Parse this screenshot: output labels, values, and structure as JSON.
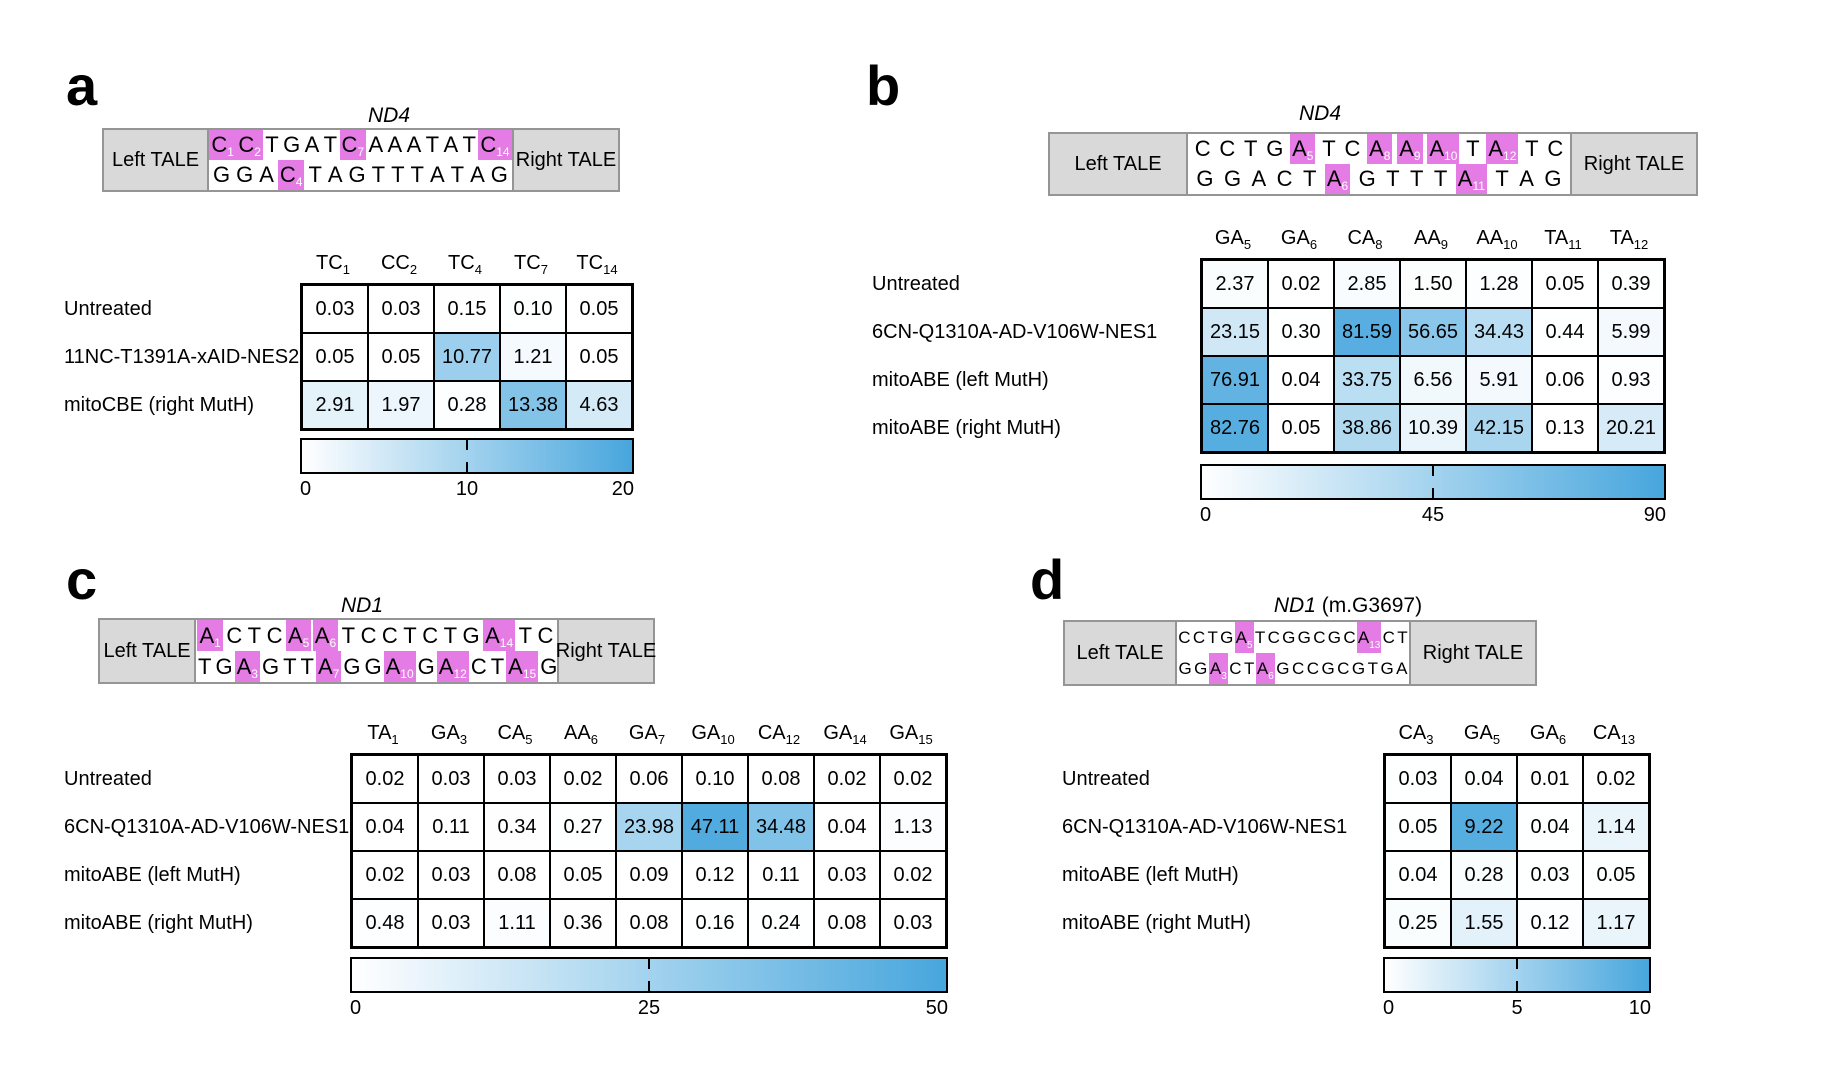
{
  "figure": {
    "colors": {
      "heat_max": "#47a6dd",
      "highlight": "#e57ce5",
      "tale_fill": "#d9d9d9",
      "tale_border": "#959595"
    },
    "panels": [
      {
        "id": "a",
        "letter": "a",
        "gene_italic": "ND4",
        "gene_suffix": "",
        "left_tale": "Left TALE",
        "right_tale": "Right TALE",
        "top_strand": [
          {
            "base": "C",
            "sub": "1",
            "hl": true
          },
          {
            "base": "C",
            "sub": "2",
            "hl": true
          },
          {
            "base": "T"
          },
          {
            "base": "G"
          },
          {
            "base": "A"
          },
          {
            "base": "T"
          },
          {
            "base": "C",
            "sub": "7",
            "hl": true
          },
          {
            "base": "A"
          },
          {
            "base": "A"
          },
          {
            "base": "A"
          },
          {
            "base": "T"
          },
          {
            "base": "A"
          },
          {
            "base": "T"
          },
          {
            "base": "C",
            "sub": "14",
            "hl": true
          }
        ],
        "bottom_strand": [
          {
            "base": "G"
          },
          {
            "base": "G"
          },
          {
            "base": "A"
          },
          {
            "base": "C",
            "sub": "4",
            "hl": true
          },
          {
            "base": "T"
          },
          {
            "base": "A"
          },
          {
            "base": "G"
          },
          {
            "base": "T"
          },
          {
            "base": "T"
          },
          {
            "base": "T"
          },
          {
            "base": "A"
          },
          {
            "base": "T"
          },
          {
            "base": "A"
          },
          {
            "base": "G"
          }
        ],
        "columns": [
          {
            "label": "TC",
            "sub": "1"
          },
          {
            "label": "CC",
            "sub": "2"
          },
          {
            "label": "TC",
            "sub": "4"
          },
          {
            "label": "TC",
            "sub": "7"
          },
          {
            "label": "TC",
            "sub": "14"
          }
        ],
        "rows": [
          {
            "label": "Untreated",
            "values": [
              "0.03",
              "0.03",
              "0.15",
              "0.10",
              "0.05"
            ]
          },
          {
            "label": "11NC-T1391A-xAID-NES2",
            "values": [
              "0.05",
              "0.05",
              "10.77",
              "1.21",
              "0.05"
            ]
          },
          {
            "label": "mitoCBE (right MutH)",
            "values": [
              "2.91",
              "1.97",
              "0.28",
              "13.38",
              "4.63"
            ]
          }
        ],
        "scale": {
          "min": "0",
          "mid": "10",
          "max": "20"
        }
      },
      {
        "id": "b",
        "letter": "b",
        "gene_italic": "ND4",
        "gene_suffix": "",
        "left_tale": "Left TALE",
        "right_tale": "Right TALE",
        "top_strand": [
          {
            "base": "C"
          },
          {
            "base": "C"
          },
          {
            "base": "T"
          },
          {
            "base": "G"
          },
          {
            "base": "A",
            "sub": "5",
            "hl": true
          },
          {
            "base": "T"
          },
          {
            "base": "C"
          },
          {
            "base": "A",
            "sub": "8",
            "hl": true
          },
          {
            "base": "A",
            "sub": "9",
            "hl": true
          },
          {
            "base": "A",
            "sub": "10",
            "hl": true
          },
          {
            "base": "T"
          },
          {
            "base": "A",
            "sub": "12",
            "hl": true
          },
          {
            "base": "T"
          },
          {
            "base": "C"
          }
        ],
        "bottom_strand": [
          {
            "base": "G"
          },
          {
            "base": "G"
          },
          {
            "base": "A"
          },
          {
            "base": "C"
          },
          {
            "base": "T"
          },
          {
            "base": "A",
            "sub": "6",
            "hl": true
          },
          {
            "base": "G"
          },
          {
            "base": "T"
          },
          {
            "base": "T"
          },
          {
            "base": "T"
          },
          {
            "base": "A",
            "sub": "11",
            "hl": true
          },
          {
            "base": "T"
          },
          {
            "base": "A"
          },
          {
            "base": "G"
          }
        ],
        "columns": [
          {
            "label": "GA",
            "sub": "5"
          },
          {
            "label": "GA",
            "sub": "6"
          },
          {
            "label": "CA",
            "sub": "8"
          },
          {
            "label": "AA",
            "sub": "9"
          },
          {
            "label": "AA",
            "sub": "10"
          },
          {
            "label": "TA",
            "sub": "11"
          },
          {
            "label": "TA",
            "sub": "12"
          }
        ],
        "rows": [
          {
            "label": "Untreated",
            "values": [
              "2.37",
              "0.02",
              "2.85",
              "1.50",
              "1.28",
              "0.05",
              "0.39"
            ]
          },
          {
            "label": "6CN-Q1310A-AD-V106W-NES1",
            "values": [
              "23.15",
              "0.30",
              "81.59",
              "56.65",
              "34.43",
              "0.44",
              "5.99"
            ]
          },
          {
            "label": "mitoABE (left MutH)",
            "values": [
              "76.91",
              "0.04",
              "33.75",
              "6.56",
              "5.91",
              "0.06",
              "0.93"
            ]
          },
          {
            "label": "mitoABE (right MutH)",
            "values": [
              "82.76",
              "0.05",
              "38.86",
              "10.39",
              "42.15",
              "0.13",
              "20.21"
            ]
          }
        ],
        "scale": {
          "min": "0",
          "mid": "45",
          "max": "90"
        }
      },
      {
        "id": "c",
        "letter": "c",
        "gene_italic": "ND1",
        "gene_suffix": "",
        "left_tale": "Left TALE",
        "right_tale": "Right TALE",
        "top_strand": [
          {
            "base": "A",
            "sub": "1",
            "hl": true
          },
          {
            "base": "C"
          },
          {
            "base": "T"
          },
          {
            "base": "C"
          },
          {
            "base": "A",
            "sub": "5",
            "hl": true
          },
          {
            "base": "A",
            "sub": "6",
            "hl": true
          },
          {
            "base": "T"
          },
          {
            "base": "C"
          },
          {
            "base": "C"
          },
          {
            "base": "T"
          },
          {
            "base": "C"
          },
          {
            "base": "T"
          },
          {
            "base": "G"
          },
          {
            "base": "A",
            "sub": "14",
            "hl": true
          },
          {
            "base": "T"
          },
          {
            "base": "C"
          }
        ],
        "bottom_strand": [
          {
            "base": "T"
          },
          {
            "base": "G"
          },
          {
            "base": "A",
            "sub": "3",
            "hl": true
          },
          {
            "base": "G"
          },
          {
            "base": "T"
          },
          {
            "base": "T"
          },
          {
            "base": "A",
            "sub": "7",
            "hl": true
          },
          {
            "base": "G"
          },
          {
            "base": "G"
          },
          {
            "base": "A",
            "sub": "10",
            "hl": true
          },
          {
            "base": "G"
          },
          {
            "base": "A",
            "sub": "12",
            "hl": true
          },
          {
            "base": "C"
          },
          {
            "base": "T"
          },
          {
            "base": "A",
            "sub": "15",
            "hl": true
          },
          {
            "base": "G"
          }
        ],
        "columns": [
          {
            "label": "TA",
            "sub": "1"
          },
          {
            "label": "GA",
            "sub": "3"
          },
          {
            "label": "CA",
            "sub": "5"
          },
          {
            "label": "AA",
            "sub": "6"
          },
          {
            "label": "GA",
            "sub": "7"
          },
          {
            "label": "GA",
            "sub": "10"
          },
          {
            "label": "CA",
            "sub": "12"
          },
          {
            "label": "GA",
            "sub": "14"
          },
          {
            "label": "GA",
            "sub": "15"
          }
        ],
        "rows": [
          {
            "label": "Untreated",
            "values": [
              "0.02",
              "0.03",
              "0.03",
              "0.02",
              "0.06",
              "0.10",
              "0.08",
              "0.02",
              "0.02"
            ]
          },
          {
            "label": "6CN-Q1310A-AD-V106W-NES1",
            "values": [
              "0.04",
              "0.11",
              "0.34",
              "0.27",
              "23.98",
              "47.11",
              "34.48",
              "0.04",
              "1.13"
            ]
          },
          {
            "label": "mitoABE (left MutH)",
            "values": [
              "0.02",
              "0.03",
              "0.08",
              "0.05",
              "0.09",
              "0.12",
              "0.11",
              "0.03",
              "0.02"
            ]
          },
          {
            "label": "mitoABE (right MutH)",
            "values": [
              "0.48",
              "0.03",
              "1.11",
              "0.36",
              "0.08",
              "0.16",
              "0.24",
              "0.08",
              "0.03"
            ]
          }
        ],
        "scale": {
          "min": "0",
          "mid": "25",
          "max": "50"
        }
      },
      {
        "id": "d",
        "letter": "d",
        "gene_italic": "ND1",
        "gene_suffix": " (m.G3697)",
        "left_tale": "Left TALE",
        "right_tale": "Right TALE",
        "top_strand": [
          {
            "base": "C"
          },
          {
            "base": "C"
          },
          {
            "base": "T"
          },
          {
            "base": "G"
          },
          {
            "base": "A",
            "sub": "5",
            "hl": true
          },
          {
            "base": "T"
          },
          {
            "base": "C"
          },
          {
            "base": "G"
          },
          {
            "base": "G"
          },
          {
            "base": "C"
          },
          {
            "base": "G"
          },
          {
            "base": "C"
          },
          {
            "base": "A",
            "sub": "13",
            "hl": true
          },
          {
            "base": "C"
          },
          {
            "base": "T"
          }
        ],
        "bottom_strand": [
          {
            "base": "G"
          },
          {
            "base": "G"
          },
          {
            "base": "A",
            "sub": "3",
            "hl": true
          },
          {
            "base": "C"
          },
          {
            "base": "T"
          },
          {
            "base": "A",
            "sub": "6",
            "hl": true
          },
          {
            "base": "G"
          },
          {
            "base": "C"
          },
          {
            "base": "C"
          },
          {
            "base": "G"
          },
          {
            "base": "C"
          },
          {
            "base": "G"
          },
          {
            "base": "T"
          },
          {
            "base": "G"
          },
          {
            "base": "A"
          }
        ],
        "columns": [
          {
            "label": "CA",
            "sub": "3"
          },
          {
            "label": "GA",
            "sub": "5"
          },
          {
            "label": "GA",
            "sub": "6"
          },
          {
            "label": "CA",
            "sub": "13"
          }
        ],
        "rows": [
          {
            "label": "Untreated",
            "values": [
              "0.03",
              "0.04",
              "0.01",
              "0.02"
            ]
          },
          {
            "label": "6CN-Q1310A-AD-V106W-NES1",
            "values": [
              "0.05",
              "9.22",
              "0.04",
              "1.14"
            ]
          },
          {
            "label": "mitoABE (left MutH)",
            "values": [
              "0.04",
              "0.28",
              "0.03",
              "0.05"
            ]
          },
          {
            "label": "mitoABE (right MutH)",
            "values": [
              "0.25",
              "1.55",
              "0.12",
              "1.17"
            ]
          }
        ],
        "scale": {
          "min": "0",
          "mid": "5",
          "max": "10"
        }
      }
    ]
  }
}
